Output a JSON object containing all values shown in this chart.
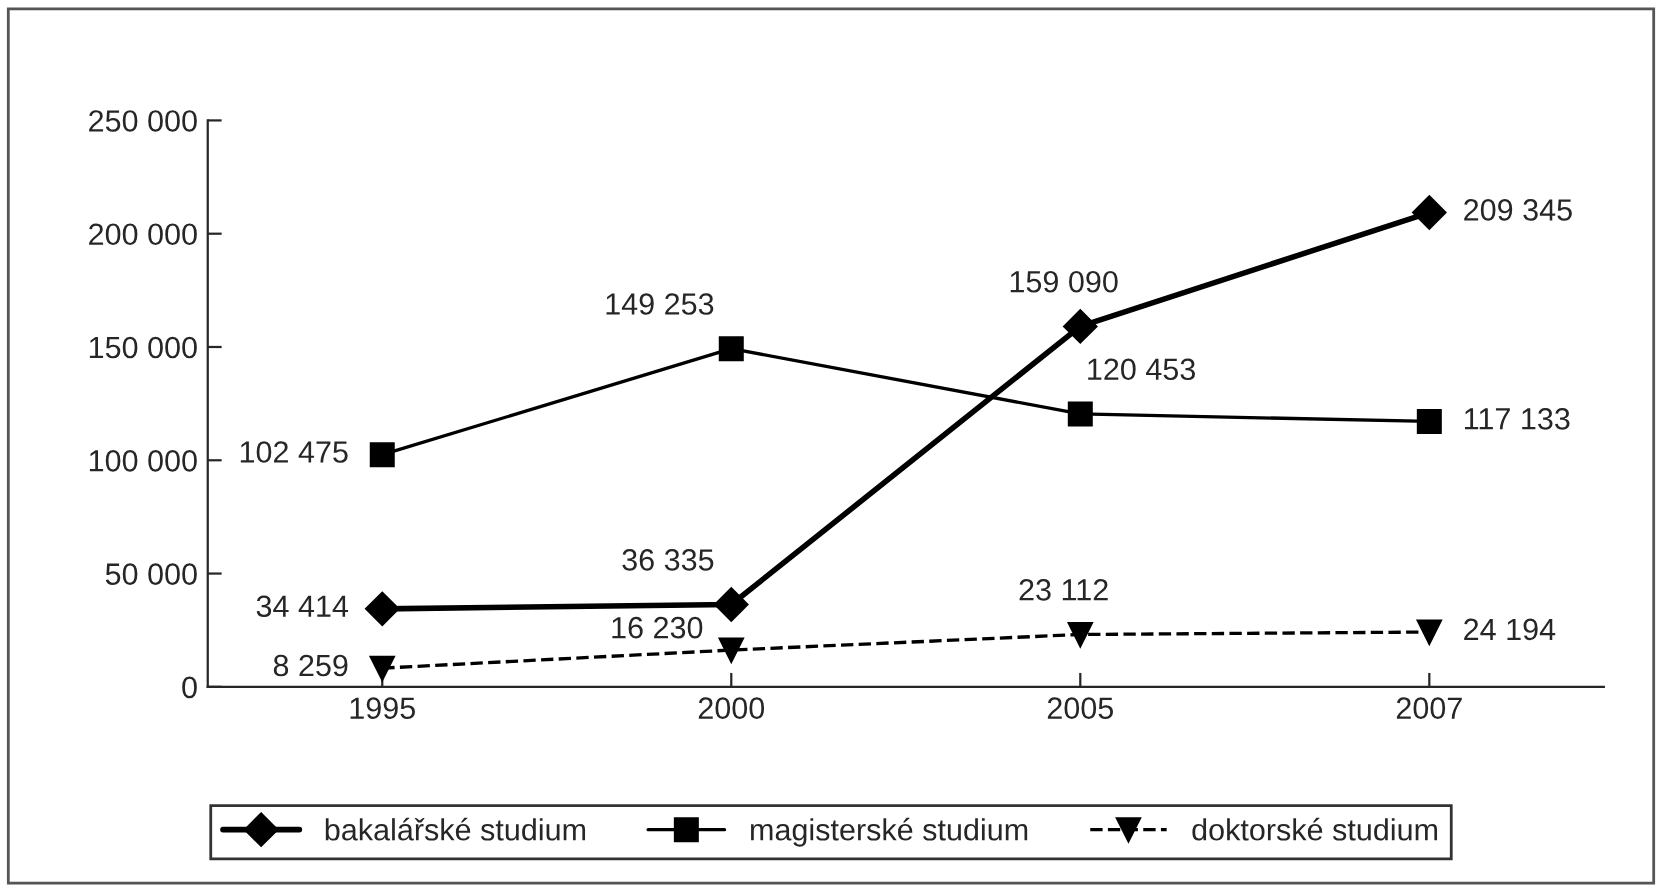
{
  "chart_data": {
    "type": "line",
    "categories": [
      "1995",
      "2000",
      "2005",
      "2007"
    ],
    "ylim": [
      0,
      250000
    ],
    "yticks": [
      {
        "value": 0,
        "label": "0"
      },
      {
        "value": 50000,
        "label": "50 000"
      },
      {
        "value": 100000,
        "label": "100 000"
      },
      {
        "value": 150000,
        "label": "150 000"
      },
      {
        "value": 200000,
        "label": "200 000"
      },
      {
        "value": 250000,
        "label": "250 000"
      }
    ],
    "series": [
      {
        "name": "bakalářské studium",
        "color": "#000000",
        "values": [
          34414,
          36335,
          159090,
          209345
        ],
        "value_labels": [
          "34 414",
          "36 335",
          "159 090",
          "209 345"
        ],
        "marker": "diamond",
        "line_style": "solid"
      },
      {
        "name": "magisterské studium",
        "color": "#000000",
        "values": [
          102475,
          149253,
          120453,
          117133
        ],
        "value_labels": [
          "102 475",
          "149 253",
          "120 453",
          "117 133"
        ],
        "marker": "square",
        "line_style": "solid"
      },
      {
        "name": "doktorské studium",
        "color": "#000000",
        "values": [
          8259,
          16230,
          23112,
          24194
        ],
        "value_labels": [
          "8 259",
          "16 230",
          "23 112",
          "24 194"
        ],
        "marker": "triangle",
        "line_style": "dashed"
      }
    ],
    "grid": false,
    "legend": "bottom"
  }
}
